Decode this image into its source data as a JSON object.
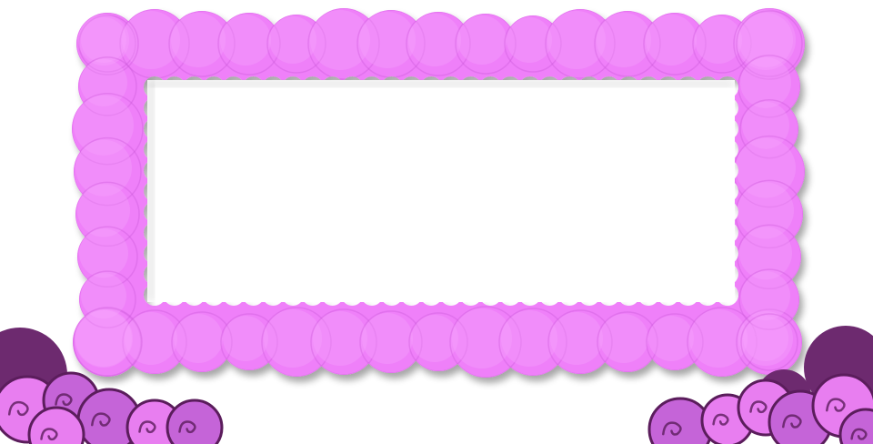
{
  "scene": {
    "elements": [
      "cloud-frame",
      "frame-window",
      "cloud-cluster-left",
      "cloud-cluster-right"
    ]
  },
  "colors": {
    "background": "#ffffff",
    "frame_fill": "#ef80f9",
    "frame_highlight": "#f7a7fb",
    "frame_shadow": "#c957d6",
    "cloud_light": "#e87ef0",
    "cloud_mid": "#c564d8",
    "cloud_dark": "#6d2a6f",
    "cloud_outline": "#5b1d5c"
  }
}
